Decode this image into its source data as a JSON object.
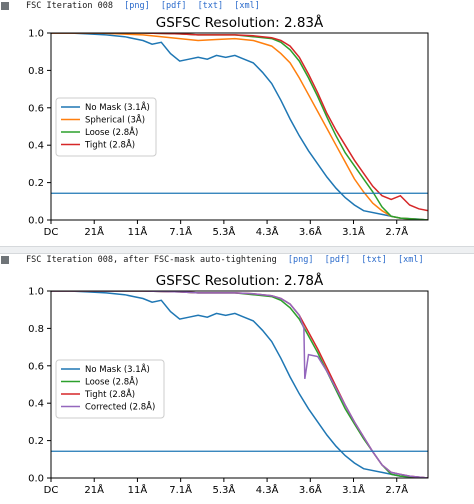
{
  "panels": [
    {
      "header_title": "FSC Iteration 008",
      "links": [
        "[png]",
        "[pdf]",
        "[txt]",
        "[xml]"
      ],
      "chart_data": {
        "type": "line",
        "title": "GSFSC Resolution: 2.83Å",
        "x_tick_labels": [
          "DC",
          "21Å",
          "11Å",
          "7.1Å",
          "5.3Å",
          "4.3Å",
          "3.6Å",
          "3.1Å",
          "2.7Å"
        ],
        "x_tick_positions": [
          0,
          0.047,
          0.094,
          0.141,
          0.188,
          0.235,
          0.282,
          0.329,
          0.376
        ],
        "xlim": [
          0,
          0.41
        ],
        "ylim": [
          0,
          1.0
        ],
        "y_ticks": [
          0.0,
          0.2,
          0.4,
          0.6,
          0.8,
          1.0
        ],
        "threshold": 0.143,
        "legend_position": "center-left",
        "series": [
          {
            "name": "No Mask (3.1Å)",
            "color": "#1f77b4",
            "x": [
              0,
              0.02,
              0.04,
              0.06,
              0.08,
              0.09,
              0.1,
              0.11,
              0.12,
              0.13,
              0.14,
              0.15,
              0.16,
              0.17,
              0.18,
              0.19,
              0.2,
              0.21,
              0.22,
              0.23,
              0.24,
              0.25,
              0.26,
              0.27,
              0.28,
              0.29,
              0.3,
              0.31,
              0.32,
              0.33,
              0.34,
              0.36,
              0.38,
              0.4,
              0.41
            ],
            "y": [
              1,
              1,
              0.995,
              0.99,
              0.98,
              0.97,
              0.96,
              0.94,
              0.95,
              0.89,
              0.85,
              0.86,
              0.87,
              0.86,
              0.88,
              0.87,
              0.88,
              0.86,
              0.84,
              0.79,
              0.73,
              0.64,
              0.54,
              0.45,
              0.37,
              0.3,
              0.23,
              0.17,
              0.12,
              0.08,
              0.05,
              0.03,
              0.01,
              0.005,
              0.0
            ]
          },
          {
            "name": "Spherical (3Å)",
            "color": "#ff7f0e",
            "x": [
              0,
              0.05,
              0.1,
              0.14,
              0.16,
              0.18,
              0.2,
              0.22,
              0.24,
              0.25,
              0.26,
              0.27,
              0.28,
              0.29,
              0.3,
              0.31,
              0.32,
              0.33,
              0.34,
              0.35,
              0.36,
              0.37,
              0.38,
              0.41
            ],
            "y": [
              1,
              1,
              0.99,
              0.97,
              0.96,
              0.965,
              0.97,
              0.96,
              0.93,
              0.89,
              0.84,
              0.76,
              0.67,
              0.58,
              0.49,
              0.4,
              0.31,
              0.22,
              0.15,
              0.09,
              0.05,
              0.02,
              0.01,
              0.0
            ]
          },
          {
            "name": "Loose (2.8Å)",
            "color": "#2ca02c",
            "x": [
              0,
              0.05,
              0.1,
              0.14,
              0.16,
              0.18,
              0.2,
              0.22,
              0.24,
              0.25,
              0.26,
              0.27,
              0.28,
              0.29,
              0.3,
              0.31,
              0.32,
              0.33,
              0.34,
              0.35,
              0.36,
              0.37,
              0.38,
              0.41
            ],
            "y": [
              1,
              1,
              1,
              0.995,
              0.99,
              0.99,
              0.99,
              0.98,
              0.97,
              0.95,
              0.91,
              0.85,
              0.76,
              0.66,
              0.55,
              0.45,
              0.36,
              0.29,
              0.22,
              0.15,
              0.07,
              0.02,
              0.01,
              0.0
            ]
          },
          {
            "name": "Tight (2.8Å)",
            "color": "#d62728",
            "x": [
              0,
              0.05,
              0.1,
              0.14,
              0.16,
              0.18,
              0.2,
              0.22,
              0.24,
              0.25,
              0.26,
              0.27,
              0.28,
              0.29,
              0.3,
              0.31,
              0.32,
              0.33,
              0.34,
              0.35,
              0.36,
              0.37,
              0.38,
              0.39,
              0.4,
              0.41
            ],
            "y": [
              1,
              1,
              1,
              0.995,
              0.99,
              0.99,
              0.99,
              0.985,
              0.975,
              0.96,
              0.93,
              0.87,
              0.78,
              0.68,
              0.57,
              0.48,
              0.4,
              0.32,
              0.25,
              0.18,
              0.13,
              0.11,
              0.13,
              0.08,
              0.06,
              0.05
            ]
          }
        ]
      }
    },
    {
      "header_title": "FSC Iteration 008, after FSC-mask auto-tightening",
      "links": [
        "[png]",
        "[pdf]",
        "[txt]",
        "[xml]"
      ],
      "chart_data": {
        "type": "line",
        "title": "GSFSC Resolution: 2.78Å",
        "x_tick_labels": [
          "DC",
          "21Å",
          "11Å",
          "7.1Å",
          "5.3Å",
          "4.3Å",
          "3.6Å",
          "3.1Å",
          "2.7Å"
        ],
        "x_tick_positions": [
          0,
          0.047,
          0.094,
          0.141,
          0.188,
          0.235,
          0.282,
          0.329,
          0.376
        ],
        "xlim": [
          0,
          0.41
        ],
        "ylim": [
          0,
          1.0
        ],
        "y_ticks": [
          0.0,
          0.2,
          0.4,
          0.6,
          0.8,
          1.0
        ],
        "threshold": 0.143,
        "legend_position": "lower-left",
        "series": [
          {
            "name": "No Mask (3.1Å)",
            "color": "#1f77b4",
            "x": [
              0,
              0.02,
              0.04,
              0.06,
              0.08,
              0.09,
              0.1,
              0.11,
              0.12,
              0.13,
              0.14,
              0.15,
              0.16,
              0.17,
              0.18,
              0.19,
              0.2,
              0.21,
              0.22,
              0.23,
              0.24,
              0.25,
              0.26,
              0.27,
              0.28,
              0.29,
              0.3,
              0.31,
              0.32,
              0.33,
              0.34,
              0.36,
              0.38,
              0.4,
              0.41
            ],
            "y": [
              1,
              1,
              0.995,
              0.99,
              0.98,
              0.97,
              0.96,
              0.94,
              0.95,
              0.89,
              0.85,
              0.86,
              0.87,
              0.86,
              0.88,
              0.87,
              0.88,
              0.86,
              0.84,
              0.79,
              0.73,
              0.64,
              0.54,
              0.45,
              0.37,
              0.3,
              0.23,
              0.17,
              0.12,
              0.08,
              0.05,
              0.03,
              0.01,
              0.005,
              0.0
            ]
          },
          {
            "name": "Loose (2.8Å)",
            "color": "#2ca02c",
            "x": [
              0,
              0.05,
              0.1,
              0.14,
              0.16,
              0.18,
              0.2,
              0.22,
              0.24,
              0.25,
              0.26,
              0.27,
              0.28,
              0.29,
              0.3,
              0.31,
              0.32,
              0.33,
              0.34,
              0.35,
              0.36,
              0.37,
              0.38,
              0.41
            ],
            "y": [
              1,
              1,
              1,
              0.995,
              0.99,
              0.99,
              0.99,
              0.98,
              0.97,
              0.95,
              0.91,
              0.85,
              0.76,
              0.67,
              0.57,
              0.47,
              0.37,
              0.29,
              0.21,
              0.14,
              0.07,
              0.02,
              0.01,
              0.0
            ]
          },
          {
            "name": "Tight (2.8Å)",
            "color": "#d62728",
            "x": [
              0,
              0.05,
              0.1,
              0.14,
              0.16,
              0.18,
              0.2,
              0.22,
              0.24,
              0.25,
              0.26,
              0.27,
              0.28,
              0.29,
              0.3,
              0.31,
              0.32,
              0.33,
              0.34,
              0.35,
              0.36,
              0.37,
              0.38,
              0.39,
              0.4,
              0.41
            ],
            "y": [
              1,
              1,
              1,
              0.995,
              0.99,
              0.99,
              0.99,
              0.985,
              0.975,
              0.96,
              0.93,
              0.87,
              0.78,
              0.69,
              0.59,
              0.49,
              0.39,
              0.3,
              0.22,
              0.14,
              0.07,
              0.03,
              0.02,
              0.01,
              0.005,
              0.0
            ]
          },
          {
            "name": "Corrected (2.8Å)",
            "color": "#9467bd",
            "x": [
              0,
              0.05,
              0.1,
              0.14,
              0.16,
              0.18,
              0.2,
              0.22,
              0.24,
              0.25,
              0.26,
              0.27,
              0.275,
              0.276,
              0.28,
              0.29,
              0.3,
              0.31,
              0.32,
              0.33,
              0.34,
              0.35,
              0.36,
              0.37,
              0.38,
              0.39,
              0.4,
              0.41
            ],
            "y": [
              1,
              1,
              1,
              0.995,
              0.99,
              0.99,
              0.99,
              0.985,
              0.975,
              0.96,
              0.93,
              0.87,
              0.8,
              0.53,
              0.66,
              0.65,
              0.57,
              0.48,
              0.39,
              0.3,
              0.22,
              0.14,
              0.07,
              0.03,
              0.02,
              0.01,
              0.005,
              0.0
            ]
          }
        ]
      }
    }
  ]
}
